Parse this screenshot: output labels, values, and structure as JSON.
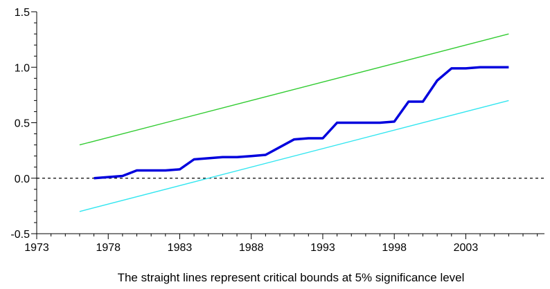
{
  "chart_data": {
    "type": "line",
    "title": "",
    "xlabel": "",
    "ylabel": "",
    "caption": "The straight lines represent critical bounds at 5% significance level",
    "xlim": [
      1973,
      2008.5
    ],
    "ylim": [
      -0.5,
      1.5
    ],
    "x_ticks": [
      1973,
      1978,
      1983,
      1988,
      1993,
      1998,
      2003
    ],
    "y_ticks": [
      -0.5,
      0.0,
      0.5,
      1.0,
      1.5
    ],
    "y_tick_labels": [
      "-0.5",
      "0.0",
      "0.5",
      "1.0",
      "1.5"
    ],
    "grid": false,
    "zero_line": {
      "y": 0,
      "style": "dashed",
      "color": "#000000"
    },
    "series": [
      {
        "role": "upper-bound",
        "color": "#33cc33",
        "x": [
          1976,
          2006
        ],
        "y": [
          0.3,
          1.3
        ]
      },
      {
        "role": "lower-bound",
        "color": "#33e6f0",
        "x": [
          1976,
          2006
        ],
        "y": [
          -0.3,
          0.7
        ]
      },
      {
        "role": "statistic",
        "color": "#0000dd",
        "x": [
          1977,
          1978,
          1979,
          1980,
          1981,
          1982,
          1983,
          1984,
          1985,
          1986,
          1987,
          1988,
          1989,
          1990,
          1991,
          1992,
          1993,
          1994,
          1995,
          1996,
          1997,
          1998,
          1999,
          2000,
          2001,
          2002,
          2003,
          2004,
          2005,
          2006
        ],
        "y": [
          0.0,
          0.01,
          0.02,
          0.07,
          0.07,
          0.07,
          0.08,
          0.17,
          0.18,
          0.19,
          0.19,
          0.2,
          0.21,
          0.28,
          0.35,
          0.36,
          0.36,
          0.5,
          0.5,
          0.5,
          0.5,
          0.51,
          0.69,
          0.69,
          0.88,
          0.99,
          0.99,
          1.0,
          1.0,
          1.0
        ]
      }
    ]
  }
}
